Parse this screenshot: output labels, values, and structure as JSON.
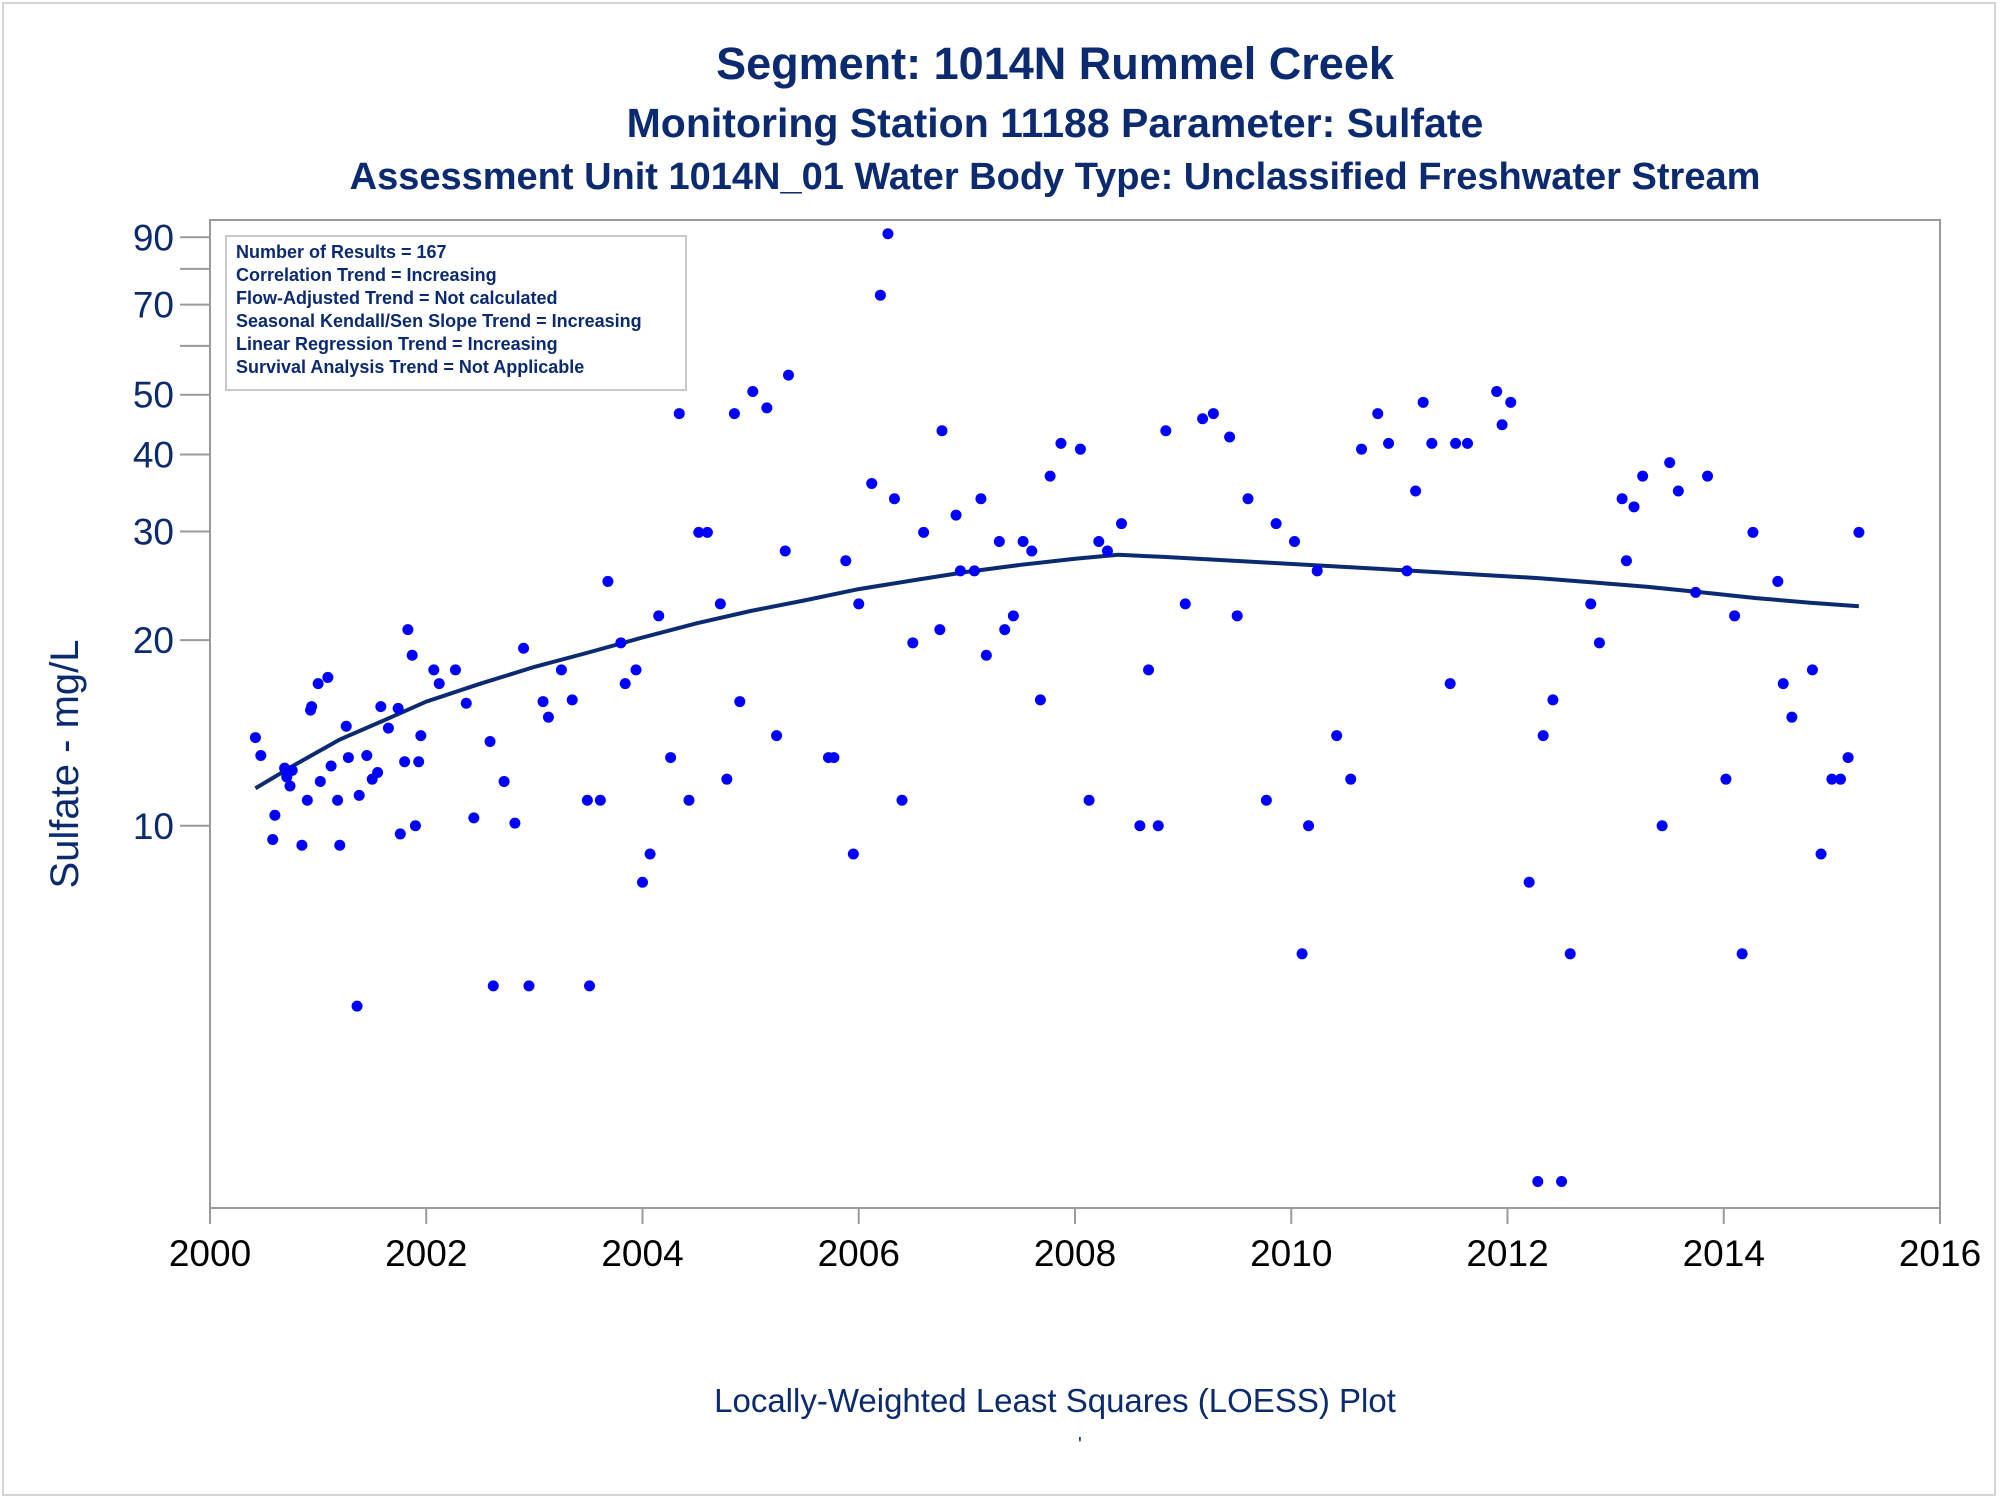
{
  "titles": {
    "line1": "Segment: 1014N  Rummel Creek",
    "line2": "Monitoring Station 11188 Parameter: Sulfate",
    "line3": "Assessment Unit 1014N_01   Water Body Type: Unclassified Freshwater Stream"
  },
  "footnote": "Locally-Weighted Least Squares (LOESS) Plot",
  "footnote_mark": "'",
  "stats_box": [
    "Number of Results = 167",
    "Correlation Trend = Increasing",
    "Flow-Adjusted Trend = Not calculated",
    "Seasonal Kendall/Sen Slope Trend = Increasing",
    "Linear Regression Trend = Increasing",
    "Survival Analysis Trend = Not Applicable"
  ],
  "colors": {
    "text": "#0b2a6f",
    "points": "#0000ff",
    "trend_line": "#0b2a6f",
    "axis": "#9a9a9a"
  },
  "chart_data": {
    "type": "scatter",
    "title": "Segment: 1014N  Rummel Creek",
    "xlabel": "",
    "ylabel": "Sulfate - mg/L",
    "xlim": [
      2000,
      2016
    ],
    "ylim": [
      2.4,
      96
    ],
    "y_scale": "log",
    "x_ticks": [
      2000,
      2002,
      2004,
      2006,
      2008,
      2010,
      2012,
      2014,
      2016
    ],
    "y_ticks": [
      10,
      20,
      30,
      40,
      50,
      70,
      90
    ],
    "y_minor_ticks": [
      60,
      80
    ],
    "grid": false,
    "legend": "none",
    "series": [
      {
        "name": "",
        "kind": "points",
        "points": [
          [
            2000.42,
            13.9
          ],
          [
            2000.47,
            13.0
          ],
          [
            2000.58,
            9.5
          ],
          [
            2000.6,
            10.4
          ],
          [
            2000.69,
            12.4
          ],
          [
            2000.71,
            12.0
          ],
          [
            2000.74,
            11.6
          ],
          [
            2000.76,
            12.3
          ],
          [
            2000.85,
            9.3
          ],
          [
            2000.9,
            11.0
          ],
          [
            2000.93,
            15.4
          ],
          [
            2000.94,
            15.6
          ],
          [
            2001.0,
            17.0
          ],
          [
            2001.02,
            11.8
          ],
          [
            2001.09,
            17.4
          ],
          [
            2001.12,
            12.5
          ],
          [
            2001.18,
            11.0
          ],
          [
            2001.2,
            9.3
          ],
          [
            2001.26,
            14.5
          ],
          [
            2001.28,
            12.9
          ],
          [
            2001.36,
            5.1
          ],
          [
            2001.38,
            11.2
          ],
          [
            2001.45,
            13.0
          ],
          [
            2001.5,
            11.9
          ],
          [
            2001.55,
            12.2
          ],
          [
            2001.58,
            15.6
          ],
          [
            2001.65,
            14.4
          ],
          [
            2001.74,
            15.5
          ],
          [
            2001.76,
            9.7
          ],
          [
            2001.8,
            12.7
          ],
          [
            2001.83,
            20.8
          ],
          [
            2001.87,
            18.9
          ],
          [
            2001.9,
            10.0
          ],
          [
            2001.93,
            12.7
          ],
          [
            2001.95,
            14.0
          ],
          [
            2002.07,
            17.9
          ],
          [
            2002.12,
            17.0
          ],
          [
            2002.27,
            17.9
          ],
          [
            2002.37,
            15.8
          ],
          [
            2002.44,
            10.3
          ],
          [
            2002.59,
            13.7
          ],
          [
            2002.62,
            5.5
          ],
          [
            2002.72,
            11.8
          ],
          [
            2002.82,
            10.1
          ],
          [
            2002.9,
            19.4
          ],
          [
            2002.95,
            5.5
          ],
          [
            2003.08,
            15.9
          ],
          [
            2003.13,
            15.0
          ],
          [
            2003.25,
            17.9
          ],
          [
            2003.35,
            16.0
          ],
          [
            2003.49,
            11.0
          ],
          [
            2003.51,
            5.5
          ],
          [
            2003.61,
            11.0
          ],
          [
            2003.68,
            24.9
          ],
          [
            2003.8,
            19.8
          ],
          [
            2003.84,
            17.0
          ],
          [
            2003.94,
            17.9
          ],
          [
            2004.0,
            8.1
          ],
          [
            2004.07,
            9.0
          ],
          [
            2004.15,
            21.9
          ],
          [
            2004.26,
            12.9
          ],
          [
            2004.34,
            46.6
          ],
          [
            2004.43,
            11.0
          ],
          [
            2004.52,
            29.9
          ],
          [
            2004.6,
            29.9
          ],
          [
            2004.72,
            22.9
          ],
          [
            2004.78,
            11.9
          ],
          [
            2004.85,
            46.6
          ],
          [
            2004.9,
            15.9
          ],
          [
            2005.02,
            50.6
          ],
          [
            2005.15,
            47.6
          ],
          [
            2005.24,
            14.0
          ],
          [
            2005.32,
            27.9
          ],
          [
            2005.35,
            53.8
          ],
          [
            2005.72,
            12.9
          ],
          [
            2005.77,
            12.9
          ],
          [
            2005.88,
            26.9
          ],
          [
            2005.95,
            9.0
          ],
          [
            2006.0,
            22.9
          ],
          [
            2006.12,
            35.9
          ],
          [
            2006.2,
            72.5
          ],
          [
            2006.27,
            91.2
          ],
          [
            2006.33,
            33.9
          ],
          [
            2006.4,
            11.0
          ],
          [
            2006.5,
            19.8
          ],
          [
            2006.6,
            29.9
          ],
          [
            2006.75,
            20.8
          ],
          [
            2006.77,
            43.7
          ],
          [
            2006.9,
            31.9
          ],
          [
            2006.94,
            25.9
          ],
          [
            2007.07,
            25.9
          ],
          [
            2007.13,
            33.9
          ],
          [
            2007.18,
            18.9
          ],
          [
            2007.3,
            28.9
          ],
          [
            2007.35,
            20.8
          ],
          [
            2007.43,
            21.9
          ],
          [
            2007.52,
            28.9
          ],
          [
            2007.6,
            27.9
          ],
          [
            2007.68,
            16.0
          ],
          [
            2007.77,
            36.9
          ],
          [
            2007.87,
            41.7
          ],
          [
            2008.05,
            40.8
          ],
          [
            2008.13,
            11.0
          ],
          [
            2008.22,
            28.9
          ],
          [
            2008.3,
            27.9
          ],
          [
            2008.43,
            30.9
          ],
          [
            2008.6,
            10.0
          ],
          [
            2008.68,
            17.9
          ],
          [
            2008.77,
            10.0
          ],
          [
            2008.84,
            43.7
          ],
          [
            2009.02,
            22.9
          ],
          [
            2009.18,
            45.7
          ],
          [
            2009.28,
            46.6
          ],
          [
            2009.43,
            42.7
          ],
          [
            2009.5,
            21.9
          ],
          [
            2009.6,
            33.9
          ],
          [
            2009.77,
            11.0
          ],
          [
            2009.86,
            30.9
          ],
          [
            2010.03,
            28.9
          ],
          [
            2010.1,
            6.2
          ],
          [
            2010.16,
            10.0
          ],
          [
            2010.24,
            25.9
          ],
          [
            2010.42,
            14.0
          ],
          [
            2010.55,
            11.9
          ],
          [
            2010.65,
            40.8
          ],
          [
            2010.8,
            46.6
          ],
          [
            2010.9,
            41.7
          ],
          [
            2011.07,
            25.9
          ],
          [
            2011.15,
            34.9
          ],
          [
            2011.22,
            48.6
          ],
          [
            2011.3,
            41.7
          ],
          [
            2011.47,
            17.0
          ],
          [
            2011.52,
            41.7
          ],
          [
            2011.63,
            41.7
          ],
          [
            2011.9,
            50.6
          ],
          [
            2011.95,
            44.7
          ],
          [
            2012.03,
            48.6
          ],
          [
            2012.2,
            8.1
          ],
          [
            2012.28,
            2.65
          ],
          [
            2012.33,
            14.0
          ],
          [
            2012.42,
            16.0
          ],
          [
            2012.5,
            2.65
          ],
          [
            2012.58,
            6.2
          ],
          [
            2012.77,
            22.9
          ],
          [
            2012.85,
            19.8
          ],
          [
            2013.06,
            33.9
          ],
          [
            2013.1,
            26.9
          ],
          [
            2013.17,
            32.9
          ],
          [
            2013.25,
            36.9
          ],
          [
            2013.43,
            10.0
          ],
          [
            2013.5,
            38.8
          ],
          [
            2013.58,
            34.9
          ],
          [
            2013.74,
            23.9
          ],
          [
            2013.85,
            36.9
          ],
          [
            2014.02,
            11.9
          ],
          [
            2014.1,
            21.9
          ],
          [
            2014.17,
            6.2
          ],
          [
            2014.27,
            29.9
          ],
          [
            2014.5,
            24.9
          ],
          [
            2014.55,
            17.0
          ],
          [
            2014.63,
            15.0
          ],
          [
            2014.82,
            17.9
          ],
          [
            2014.9,
            9.0
          ],
          [
            2015.0,
            11.9
          ],
          [
            2015.08,
            11.9
          ],
          [
            2015.15,
            12.9
          ],
          [
            2015.25,
            29.9
          ]
        ]
      },
      {
        "name": "",
        "kind": "line",
        "points": [
          [
            2000.42,
            11.5
          ],
          [
            2000.8,
            12.6
          ],
          [
            2001.2,
            13.8
          ],
          [
            2001.6,
            14.8
          ],
          [
            2002.0,
            15.9
          ],
          [
            2002.5,
            17.0
          ],
          [
            2003.0,
            18.1
          ],
          [
            2003.5,
            19.1
          ],
          [
            2004.0,
            20.2
          ],
          [
            2004.5,
            21.3
          ],
          [
            2005.0,
            22.3
          ],
          [
            2005.5,
            23.2
          ],
          [
            2006.0,
            24.2
          ],
          [
            2006.5,
            25.0
          ],
          [
            2007.0,
            25.8
          ],
          [
            2007.5,
            26.5
          ],
          [
            2008.0,
            27.1
          ],
          [
            2008.4,
            27.5
          ],
          [
            2008.8,
            27.3
          ],
          [
            2009.3,
            27.0
          ],
          [
            2009.8,
            26.7
          ],
          [
            2010.3,
            26.4
          ],
          [
            2010.8,
            26.1
          ],
          [
            2011.3,
            25.8
          ],
          [
            2011.8,
            25.5
          ],
          [
            2012.3,
            25.2
          ],
          [
            2012.8,
            24.8
          ],
          [
            2013.3,
            24.4
          ],
          [
            2013.8,
            23.9
          ],
          [
            2014.3,
            23.4
          ],
          [
            2014.8,
            23.0
          ],
          [
            2015.25,
            22.7
          ]
        ]
      }
    ]
  }
}
